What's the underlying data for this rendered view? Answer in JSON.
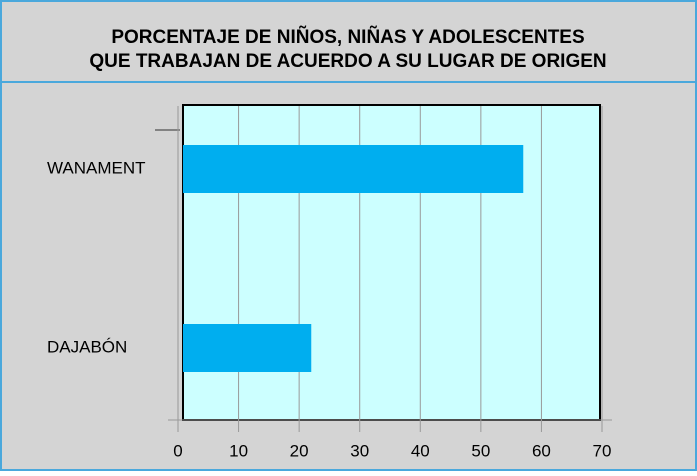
{
  "chart_data": {
    "type": "bar",
    "orientation": "horizontal",
    "title_lines": [
      "PORCENTAJE DE NIÑOS, NIÑAS Y ADOLESCENTES",
      "QUE TRABAJAN DE ACUERDO A SU LUGAR DE ORIGEN"
    ],
    "categories": [
      "WANAMENT",
      "DAJABÓN"
    ],
    "values": [
      57,
      22
    ],
    "color": "#00aeef",
    "xlim": [
      0,
      70
    ],
    "xticks": [
      0,
      10,
      20,
      30,
      40,
      50,
      60,
      70
    ],
    "grid": true
  }
}
